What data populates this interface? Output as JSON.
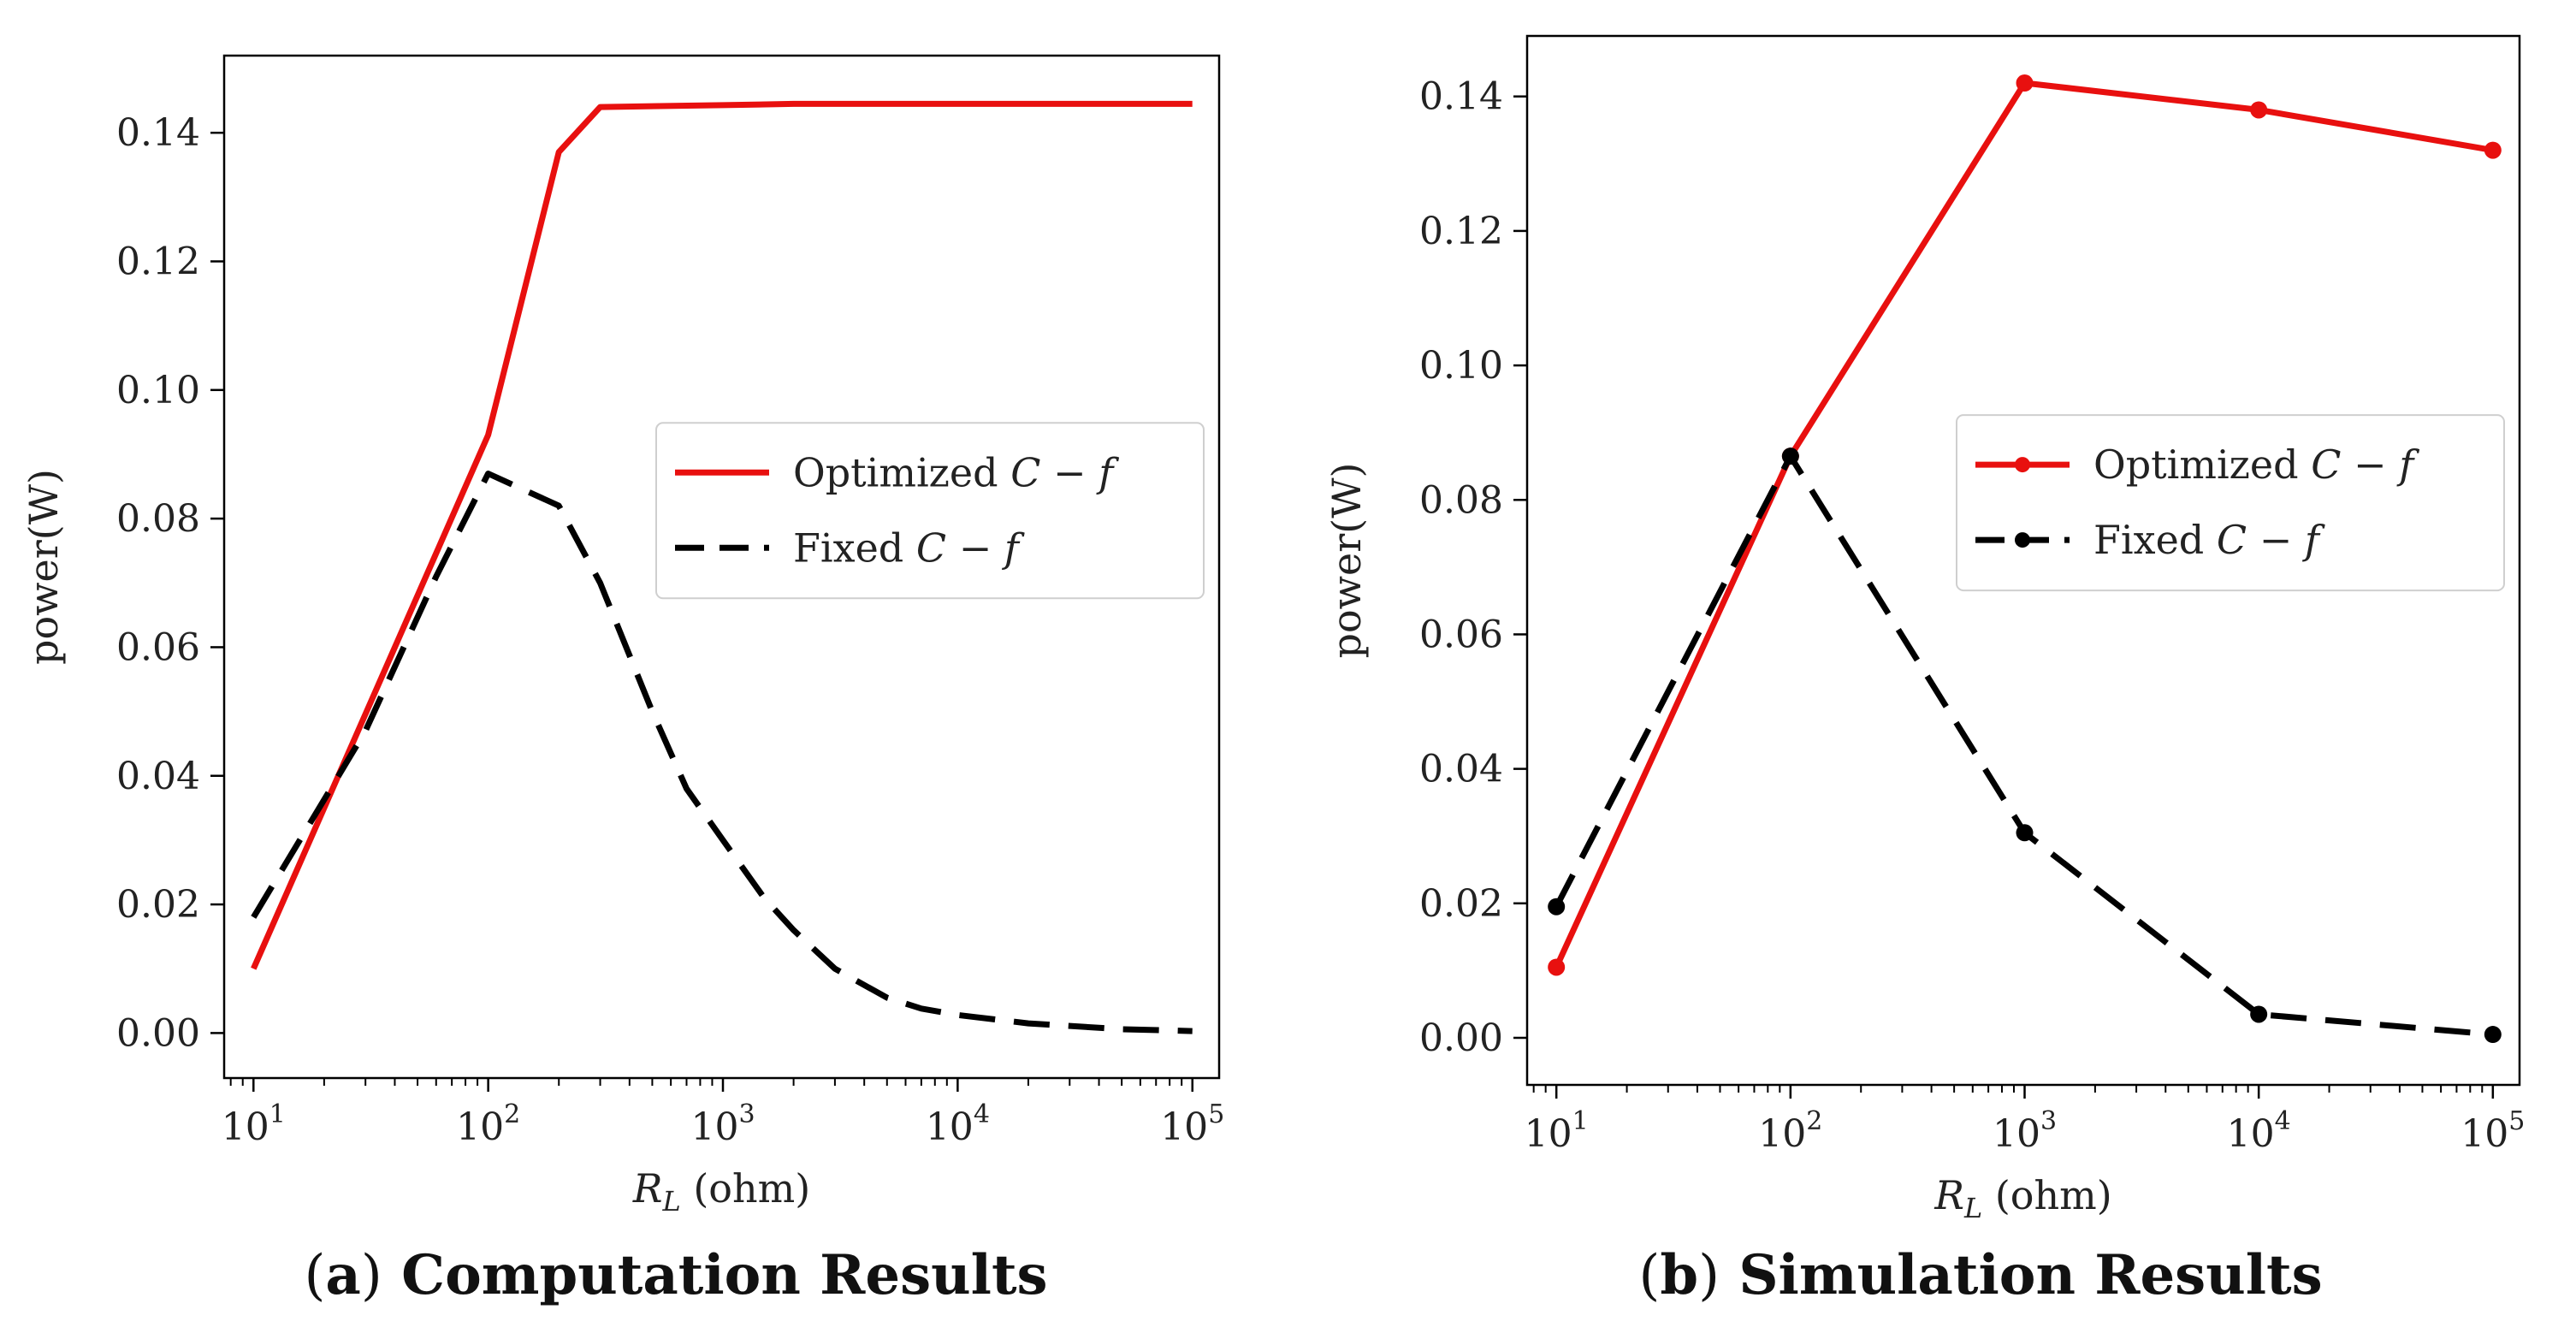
{
  "chart_data": [
    {
      "type": "line",
      "caption_letter": "(a)",
      "caption_text": "Computation Results",
      "title": "",
      "xlabel": "R_L (ohm)",
      "ylabel": "power(W)",
      "xscale": "log",
      "xlim": [
        7.5,
        130000
      ],
      "ylim": [
        -0.007,
        0.152
      ],
      "xticks": [
        10,
        100,
        1000,
        10000,
        100000
      ],
      "xtick_labels": [
        "10^1",
        "10^2",
        "10^3",
        "10^4",
        "10^5"
      ],
      "yticks": [
        0.0,
        0.02,
        0.04,
        0.06,
        0.08,
        0.1,
        0.12,
        0.14
      ],
      "ytick_labels": [
        "0.00",
        "0.02",
        "0.04",
        "0.06",
        "0.08",
        "0.10",
        "0.12",
        "0.14"
      ],
      "grid": false,
      "legend_position": "center-right",
      "series": [
        {
          "name": "Optimized C − f",
          "color": "#e8100f",
          "style": "solid",
          "markers": false,
          "x": [
            10,
            100,
            200,
            300,
            1000,
            2000,
            10000,
            100000
          ],
          "y": [
            0.01,
            0.093,
            0.137,
            0.144,
            0.1443,
            0.1445,
            0.1445,
            0.1445
          ]
        },
        {
          "name": "Fixed C − f",
          "color": "#000000",
          "style": "dashed",
          "markers": false,
          "x": [
            10,
            30,
            60,
            100,
            200,
            300,
            500,
            700,
            1000,
            1500,
            2000,
            3000,
            5000,
            7000,
            10000,
            20000,
            50000,
            100000
          ],
          "y": [
            0.018,
            0.047,
            0.071,
            0.087,
            0.082,
            0.07,
            0.05,
            0.038,
            0.03,
            0.021,
            0.016,
            0.01,
            0.0055,
            0.0038,
            0.0028,
            0.0015,
            0.0006,
            0.0003
          ]
        }
      ]
    },
    {
      "type": "line",
      "caption_letter": "(b)",
      "caption_text": "Simulation Results",
      "title": "",
      "xlabel": "R_L (ohm)",
      "ylabel": "power(W)",
      "xscale": "log",
      "xlim": [
        7.5,
        130000
      ],
      "ylim": [
        -0.007,
        0.149
      ],
      "xticks": [
        10,
        100,
        1000,
        10000,
        100000
      ],
      "xtick_labels": [
        "10^1",
        "10^2",
        "10^3",
        "10^4",
        "10^5"
      ],
      "yticks": [
        0.0,
        0.02,
        0.04,
        0.06,
        0.08,
        0.1,
        0.12,
        0.14
      ],
      "ytick_labels": [
        "0.00",
        "0.02",
        "0.04",
        "0.06",
        "0.08",
        "0.10",
        "0.12",
        "0.14"
      ],
      "grid": false,
      "legend_position": "center-right",
      "series": [
        {
          "name": "Optimized C − f",
          "color": "#e8100f",
          "style": "solid",
          "markers": true,
          "x": [
            10,
            100,
            1000,
            10000,
            100000
          ],
          "y": [
            0.0105,
            0.0865,
            0.142,
            0.138,
            0.132
          ]
        },
        {
          "name": "Fixed C − f",
          "color": "#000000",
          "style": "dashed",
          "markers": true,
          "x": [
            10,
            100,
            1000,
            10000,
            100000
          ],
          "y": [
            0.0195,
            0.0865,
            0.0305,
            0.0035,
            0.0005
          ]
        }
      ]
    }
  ]
}
